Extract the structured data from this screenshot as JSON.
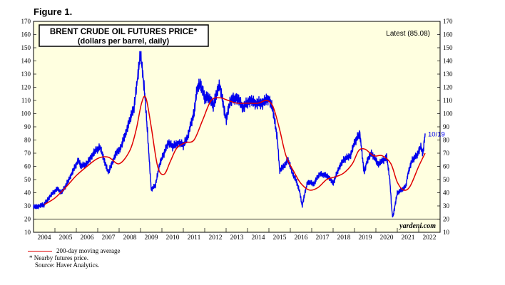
{
  "figure_label": "Figure 1.",
  "chart_data": {
    "type": "line",
    "title": "BRENT CRUDE OIL FUTURES PRICE*",
    "subtitle": "(dollars per barrel, daily)",
    "latest_label": "Latest (85.08)",
    "end_label": "10/19",
    "watermark": "yardeni.com",
    "ylim": [
      10,
      170
    ],
    "yticks": [
      10,
      20,
      30,
      40,
      50,
      60,
      70,
      80,
      90,
      100,
      110,
      120,
      130,
      140,
      150,
      160,
      170
    ],
    "xlim": [
      2003.5,
      2022.5
    ],
    "xticks": [
      "2004",
      "2005",
      "2006",
      "2007",
      "2008",
      "2009",
      "2010",
      "2011",
      "2012",
      "2013",
      "2014",
      "2015",
      "2016",
      "2017",
      "2018",
      "2019",
      "2020",
      "2021",
      "2022"
    ],
    "reference_line": 20,
    "series": [
      {
        "name": "Brent",
        "color": "#0000ee",
        "x": [
          2003.5,
          2003.8,
          2004.0,
          2004.3,
          2004.6,
          2004.8,
          2005.0,
          2005.3,
          2005.6,
          2005.7,
          2006.0,
          2006.3,
          2006.6,
          2006.9,
          2007.0,
          2007.3,
          2007.6,
          2007.9,
          2008.0,
          2008.2,
          2008.35,
          2008.5,
          2008.7,
          2008.85,
          2009.0,
          2009.2,
          2009.4,
          2009.6,
          2009.8,
          2010.0,
          2010.3,
          2010.5,
          2010.7,
          2010.9,
          2011.0,
          2011.15,
          2011.3,
          2011.5,
          2011.7,
          2011.9,
          2012.0,
          2012.2,
          2012.5,
          2012.7,
          2013.0,
          2013.3,
          2013.6,
          2013.9,
          2014.2,
          2014.5,
          2014.7,
          2014.9,
          2015.0,
          2015.2,
          2015.4,
          2015.6,
          2015.8,
          2015.95,
          2016.05,
          2016.3,
          2016.6,
          2016.9,
          2017.0,
          2017.3,
          2017.5,
          2017.8,
          2018.0,
          2018.3,
          2018.5,
          2018.75,
          2018.95,
          2019.1,
          2019.3,
          2019.6,
          2019.9,
          2020.0,
          2020.15,
          2020.25,
          2020.3,
          2020.5,
          2020.7,
          2020.9,
          2021.0,
          2021.2,
          2021.4,
          2021.6,
          2021.7,
          2021.8
        ],
        "y": [
          29,
          30,
          31,
          38,
          43,
          40,
          45,
          55,
          65,
          60,
          62,
          70,
          75,
          60,
          55,
          68,
          75,
          90,
          95,
          105,
          125,
          146,
          115,
          80,
          42,
          46,
          62,
          70,
          78,
          75,
          78,
          76,
          82,
          95,
          100,
          120,
          122,
          112,
          112,
          106,
          112,
          122,
          95,
          110,
          112,
          105,
          110,
          108,
          108,
          112,
          102,
          80,
          57,
          60,
          65,
          55,
          48,
          40,
          30,
          48,
          47,
          55,
          54,
          52,
          47,
          60,
          65,
          68,
          78,
          85,
          55,
          65,
          70,
          62,
          65,
          68,
          50,
          25,
          22,
          40,
          42,
          45,
          55,
          65,
          68,
          75,
          70,
          85
        ],
        "y_note": "approximate daily prices"
      },
      {
        "name": "200-day moving average",
        "color": "#e00000",
        "x": [
          2004.0,
          2004.5,
          2005.0,
          2005.5,
          2006.0,
          2006.5,
          2007.0,
          2007.5,
          2008.0,
          2008.3,
          2008.55,
          2008.75,
          2009.0,
          2009.3,
          2009.6,
          2009.9,
          2010.2,
          2010.6,
          2011.0,
          2011.4,
          2011.8,
          2012.2,
          2012.6,
          2013.0,
          2013.5,
          2014.0,
          2014.4,
          2014.7,
          2015.0,
          2015.3,
          2015.7,
          2016.0,
          2016.4,
          2016.8,
          2017.2,
          2017.6,
          2018.0,
          2018.4,
          2018.7,
          2019.0,
          2019.4,
          2019.8,
          2020.2,
          2020.5,
          2020.8,
          2021.1,
          2021.5,
          2021.8
        ],
        "y": [
          31,
          36,
          44,
          53,
          60,
          66,
          67,
          62,
          72,
          88,
          108,
          112,
          90,
          60,
          54,
          64,
          74,
          78,
          80,
          95,
          110,
          112,
          110,
          108,
          108,
          108,
          110,
          105,
          88,
          68,
          55,
          47,
          42,
          44,
          50,
          52,
          55,
          62,
          72,
          73,
          68,
          68,
          62,
          48,
          42,
          45,
          60,
          70
        ]
      }
    ],
    "legend": [
      {
        "label": "200-day moving average",
        "color": "#e00000"
      }
    ],
    "footnote": "*  Nearby futures price.",
    "source": "Source: Haver Analytics."
  }
}
